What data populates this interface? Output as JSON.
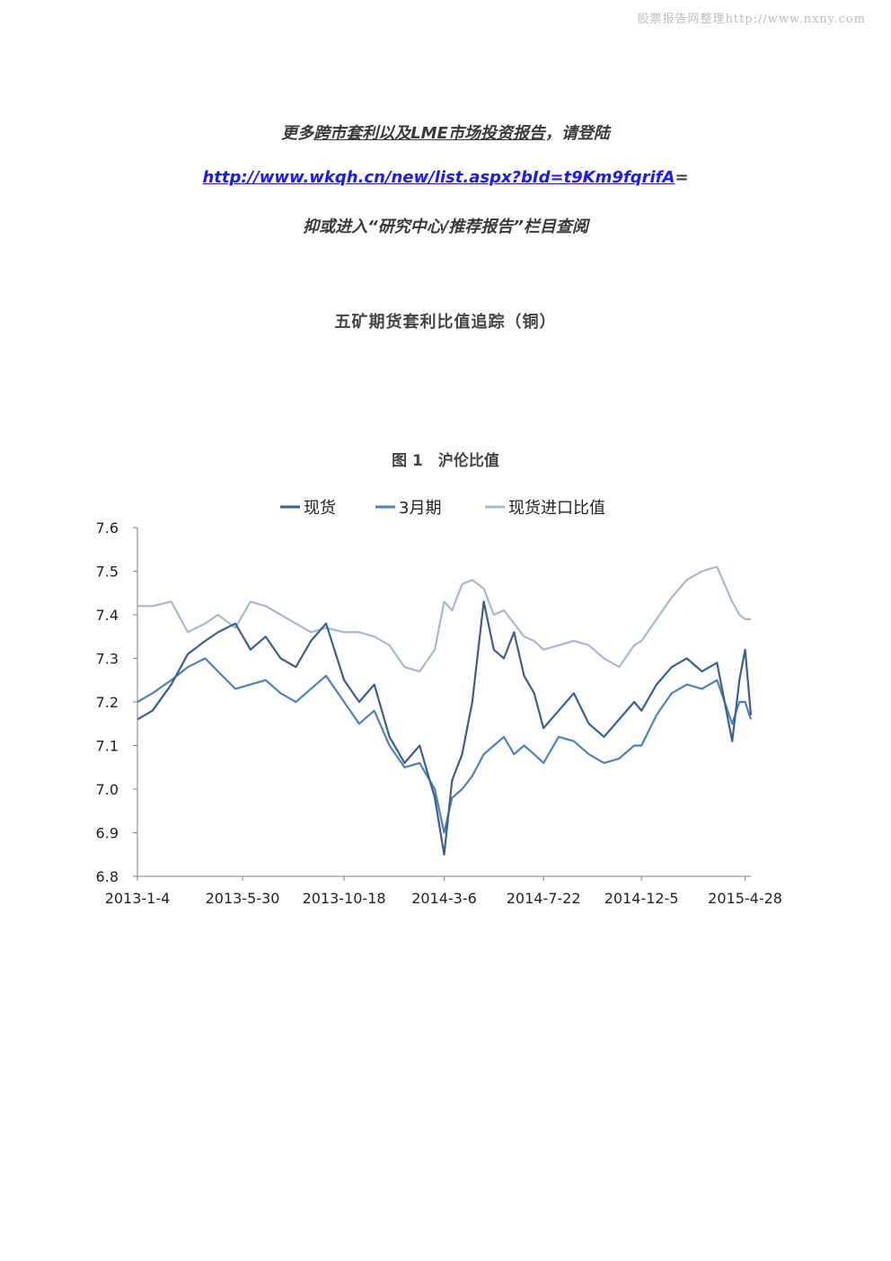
{
  "watermark": "股票报告网整理http://www.nxny.com",
  "promo": {
    "line1_prefix": "更多",
    "line1_underlined": "跨市套利以及LME市场投资报告",
    "line1_suffix": "，请登陆",
    "line2_link": "http://www.wkqh.cn/new/list.aspx?bId=t9Km9fqrifA",
    "line2_suffix": "=",
    "line3": "抑或进入“研究中心/推荐报告”栏目查阅"
  },
  "doc_title": "五矿期货套利比值追踪（铜）",
  "figure_title": "图 1　沪伦比值",
  "colors": {
    "spot": "#3b5f8f",
    "three_month": "#4f81bd",
    "import_ratio": "#a9b7d0",
    "axis": "#7f7f7f"
  },
  "chart_data": {
    "type": "line",
    "title": "",
    "ylim": [
      6.8,
      7.6
    ],
    "yticks": [
      "6.8",
      "6.9",
      "7.0",
      "7.1",
      "7.2",
      "7.3",
      "7.4",
      "7.5",
      "7.6"
    ],
    "xticks": [
      "2013-1-4",
      "2013-5-30",
      "2013-10-18",
      "2014-3-6",
      "2014-7-22",
      "2014-12-5",
      "2015-4-28"
    ],
    "x_range": [
      "2013-1-4",
      "2015-5-6"
    ],
    "legend_position": "top",
    "grid": false,
    "series": [
      {
        "name": "现货",
        "color": "#3b5f8f",
        "x": [
          "2013-1-4",
          "2013-1-25",
          "2013-2-20",
          "2013-3-15",
          "2013-4-8",
          "2013-4-26",
          "2013-5-20",
          "2013-6-10",
          "2013-7-1",
          "2013-7-22",
          "2013-8-12",
          "2013-9-2",
          "2013-9-23",
          "2013-10-18",
          "2013-11-8",
          "2013-11-29",
          "2013-12-20",
          "2014-1-10",
          "2014-1-31",
          "2014-2-21",
          "2014-3-6",
          "2014-3-17",
          "2014-3-31",
          "2014-4-14",
          "2014-4-30",
          "2014-5-14",
          "2014-5-28",
          "2014-6-11",
          "2014-6-25",
          "2014-7-9",
          "2014-7-22",
          "2014-8-12",
          "2014-9-2",
          "2014-9-23",
          "2014-10-14",
          "2014-11-4",
          "2014-11-25",
          "2014-12-5",
          "2014-12-26",
          "2015-1-16",
          "2015-2-6",
          "2015-2-27",
          "2015-3-20",
          "2015-4-10",
          "2015-4-20",
          "2015-4-28",
          "2015-5-6"
        ],
        "values": [
          7.16,
          7.18,
          7.24,
          7.31,
          7.34,
          7.36,
          7.38,
          7.32,
          7.35,
          7.3,
          7.28,
          7.34,
          7.38,
          7.25,
          7.2,
          7.24,
          7.12,
          7.06,
          7.1,
          6.98,
          6.85,
          7.02,
          7.08,
          7.2,
          7.43,
          7.32,
          7.3,
          7.36,
          7.26,
          7.22,
          7.14,
          7.18,
          7.22,
          7.15,
          7.12,
          7.16,
          7.2,
          7.18,
          7.24,
          7.28,
          7.3,
          7.27,
          7.29,
          7.11,
          7.25,
          7.32,
          7.17
        ]
      },
      {
        "name": "3月期",
        "color": "#4f81bd",
        "x": [
          "2013-1-4",
          "2013-1-25",
          "2013-2-20",
          "2013-3-15",
          "2013-4-8",
          "2013-4-26",
          "2013-5-20",
          "2013-6-10",
          "2013-7-1",
          "2013-7-22",
          "2013-8-12",
          "2013-9-2",
          "2013-9-23",
          "2013-10-18",
          "2013-11-8",
          "2013-11-29",
          "2013-12-20",
          "2014-1-10",
          "2014-1-31",
          "2014-2-21",
          "2014-3-6",
          "2014-3-17",
          "2014-3-31",
          "2014-4-14",
          "2014-4-30",
          "2014-5-14",
          "2014-5-28",
          "2014-6-11",
          "2014-6-25",
          "2014-7-9",
          "2014-7-22",
          "2014-8-12",
          "2014-9-2",
          "2014-9-23",
          "2014-10-14",
          "2014-11-4",
          "2014-11-25",
          "2014-12-5",
          "2014-12-26",
          "2015-1-16",
          "2015-2-6",
          "2015-2-27",
          "2015-3-20",
          "2015-4-10",
          "2015-4-20",
          "2015-4-28",
          "2015-5-6"
        ],
        "values": [
          7.2,
          7.22,
          7.25,
          7.28,
          7.3,
          7.27,
          7.23,
          7.24,
          7.25,
          7.22,
          7.2,
          7.23,
          7.26,
          7.2,
          7.15,
          7.18,
          7.1,
          7.05,
          7.06,
          7.0,
          6.9,
          6.98,
          7.0,
          7.03,
          7.08,
          7.1,
          7.12,
          7.08,
          7.1,
          7.08,
          7.06,
          7.12,
          7.11,
          7.08,
          7.06,
          7.07,
          7.1,
          7.1,
          7.17,
          7.22,
          7.24,
          7.23,
          7.25,
          7.15,
          7.2,
          7.2,
          7.16
        ]
      },
      {
        "name": "现货进口比值",
        "color": "#a9b7d0",
        "x": [
          "2013-1-4",
          "2013-1-25",
          "2013-2-20",
          "2013-3-15",
          "2013-4-8",
          "2013-4-26",
          "2013-5-20",
          "2013-6-10",
          "2013-7-1",
          "2013-7-22",
          "2013-8-12",
          "2013-9-2",
          "2013-9-23",
          "2013-10-18",
          "2013-11-8",
          "2013-11-29",
          "2013-12-20",
          "2014-1-10",
          "2014-1-31",
          "2014-2-21",
          "2014-3-6",
          "2014-3-17",
          "2014-3-31",
          "2014-4-14",
          "2014-4-30",
          "2014-5-14",
          "2014-5-28",
          "2014-6-11",
          "2014-6-25",
          "2014-7-9",
          "2014-7-22",
          "2014-8-12",
          "2014-9-2",
          "2014-9-23",
          "2014-10-14",
          "2014-11-4",
          "2014-11-25",
          "2014-12-5",
          "2014-12-26",
          "2015-1-16",
          "2015-2-6",
          "2015-2-27",
          "2015-3-20",
          "2015-4-10",
          "2015-4-20",
          "2015-4-28",
          "2015-5-6"
        ],
        "values": [
          7.42,
          7.42,
          7.43,
          7.36,
          7.38,
          7.4,
          7.37,
          7.43,
          7.42,
          7.4,
          7.38,
          7.36,
          7.37,
          7.36,
          7.36,
          7.35,
          7.33,
          7.28,
          7.27,
          7.32,
          7.43,
          7.41,
          7.47,
          7.48,
          7.46,
          7.4,
          7.41,
          7.38,
          7.35,
          7.34,
          7.32,
          7.33,
          7.34,
          7.33,
          7.3,
          7.28,
          7.33,
          7.34,
          7.39,
          7.44,
          7.48,
          7.5,
          7.51,
          7.43,
          7.4,
          7.39,
          7.39
        ]
      }
    ]
  }
}
